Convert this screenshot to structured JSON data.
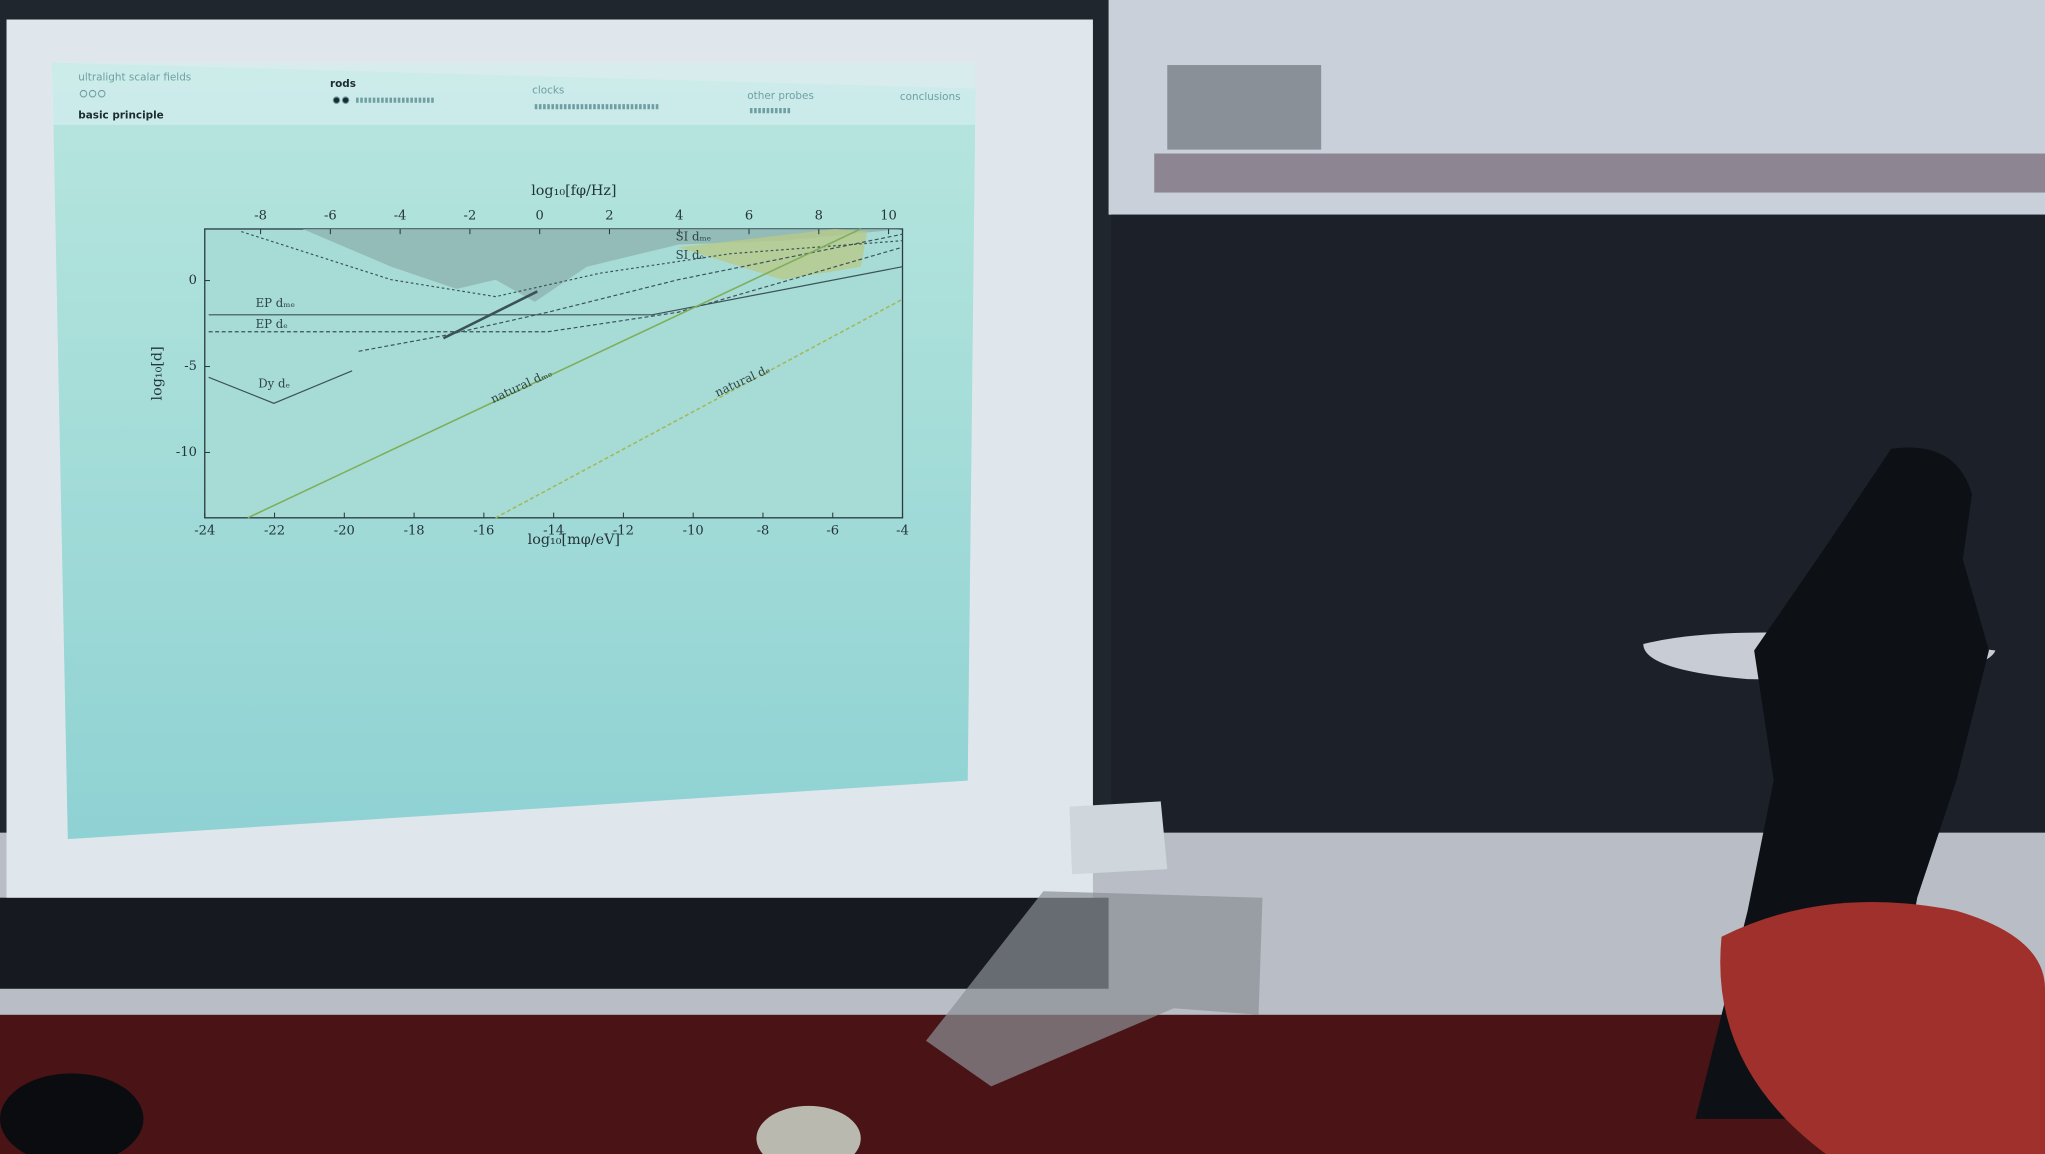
{
  "slide": {
    "nav": [
      {
        "section": "ultralight scalar fields",
        "subsection": "basic principle"
      },
      {
        "section": "rods"
      },
      {
        "section": "clocks"
      },
      {
        "section": "other probes"
      },
      {
        "section": "conclusions"
      }
    ],
    "chart": {
      "top_axis_label": "log₁₀[fφ/Hz]",
      "bottom_axis_label": "log₁₀[mφ/eV]",
      "y_axis_label": "log₁₀[d]",
      "xlim": [
        -24,
        -4
      ],
      "xticks": [
        -24,
        -22,
        -20,
        -18,
        -16,
        -14,
        -12,
        -10,
        -8,
        -6,
        -4
      ],
      "top_xlim": [
        -9.6,
        10.4
      ],
      "top_xticks": [
        -8,
        -6,
        -4,
        -2,
        0,
        2,
        4,
        6,
        8,
        10
      ],
      "ylim": [
        -13.8,
        3
      ],
      "yticks": [
        0,
        -5,
        -10
      ],
      "annotations": [
        "SI dₘₑ",
        "SI dₑ",
        "EP dₘₑ",
        "EP dₑ",
        "Dy dₑ",
        "natural dₘₑ",
        "natural dₑ"
      ]
    }
  }
}
